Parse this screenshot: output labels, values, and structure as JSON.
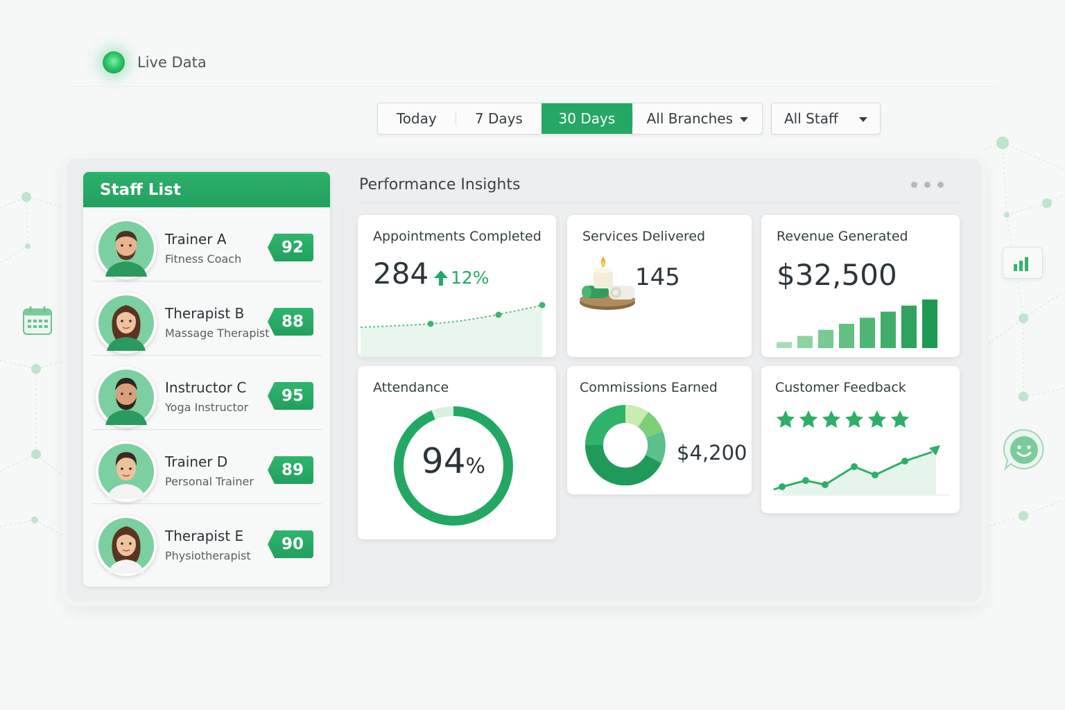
{
  "live": {
    "label": "Live Data"
  },
  "filters": {
    "ranges": [
      "Today",
      "7 Days",
      "30 Days"
    ],
    "active_range": "30 Days",
    "branches": "All Branches",
    "staff": "All Staff"
  },
  "staff_list": {
    "title": "Staff List",
    "members": [
      {
        "name": "Trainer A",
        "role": "Fitness Coach",
        "score": "92"
      },
      {
        "name": "Therapist B",
        "role": "Massage Therapist",
        "score": "88"
      },
      {
        "name": "Instructor C",
        "role": "Yoga Instructor",
        "score": "95"
      },
      {
        "name": "Trainer D",
        "role": "Personal Trainer",
        "score": "89"
      },
      {
        "name": "Therapist E",
        "role": "Physiotherapist",
        "score": "90"
      }
    ]
  },
  "insights": {
    "title": "Performance Insights",
    "appointments": {
      "title": "Appointments Completed",
      "value": "284",
      "change": "12%"
    },
    "services": {
      "title": "Services Delivered",
      "value": "145"
    },
    "revenue": {
      "title": "Revenue Generated",
      "value": "$32,500",
      "bars": [
        1,
        2,
        3,
        4,
        5,
        6,
        7,
        8
      ]
    },
    "attendance": {
      "title": "Attendance",
      "value": "94",
      "unit": "%",
      "fraction": 0.94
    },
    "commissions": {
      "title": "Commissions Earned",
      "value": "$4,200"
    },
    "feedback": {
      "title": "Customer Feedback",
      "stars": 6
    }
  },
  "colors": {
    "accent": "#25a865",
    "accent_dark": "#1b8f52",
    "accent_light": "#8fd6a8"
  }
}
